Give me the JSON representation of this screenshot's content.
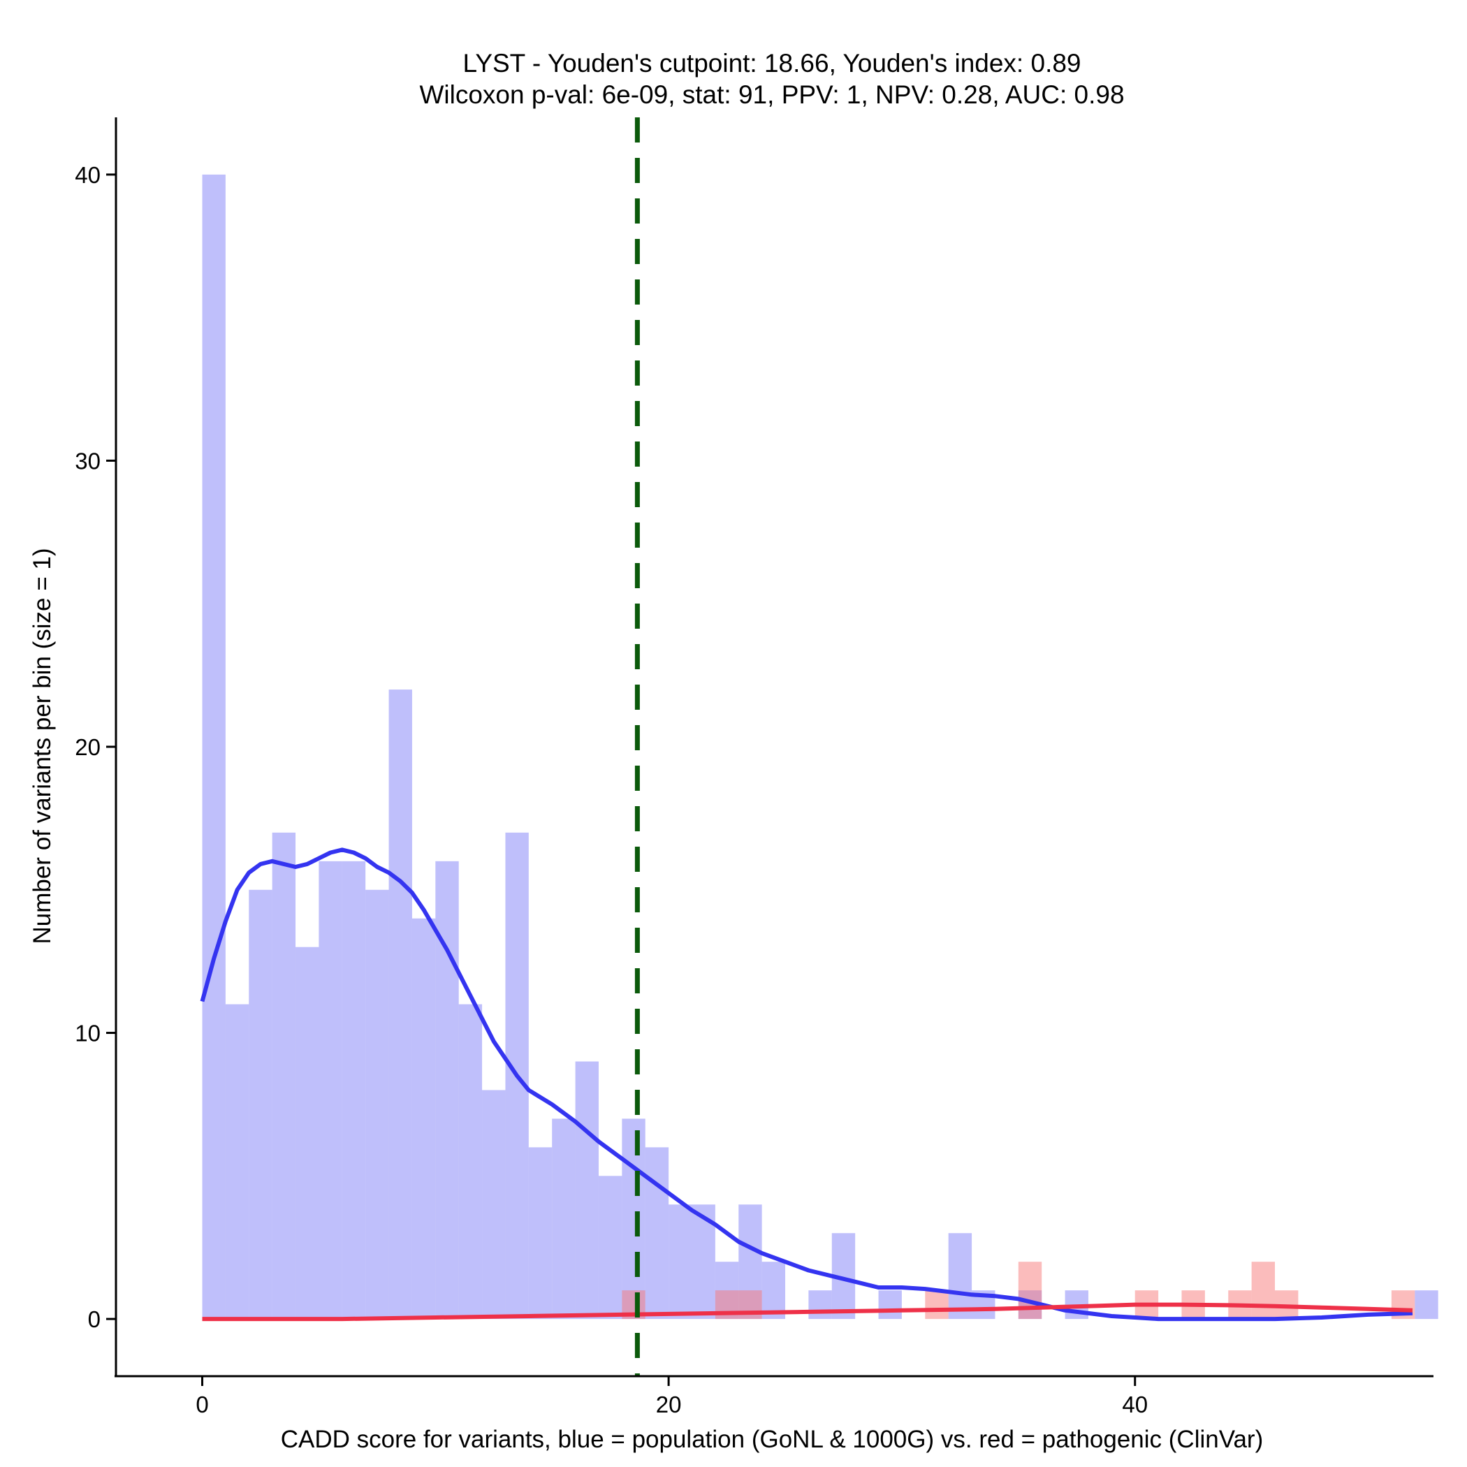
{
  "chart_data": {
    "type": "histogram",
    "title_line1": "LYST - Youden's cutpoint: 18.66, Youden's index: 0.89",
    "title_line2": "Wilcoxon p-val: 6e-09, stat: 91, PPV: 1, NPV: 0.28, AUC: 0.98",
    "xlabel": "CADD score for variants, blue = population (GoNL & 1000G) vs. red = pathogenic (ClinVar)",
    "ylabel": "Number of variants per bin (size = 1)",
    "xlim": [
      -3.7,
      52.8
    ],
    "ylim": [
      -2,
      42
    ],
    "bin_size": 1,
    "x_ticks": [
      0,
      20,
      40
    ],
    "x_tick_labels": [
      "0",
      "20",
      "40"
    ],
    "y_ticks": [
      0,
      10,
      20,
      30,
      40
    ],
    "y_tick_labels": [
      "0",
      "10",
      "20",
      "30",
      "40"
    ],
    "cutpoint": 18.66,
    "series": [
      {
        "name": "population (GoNL & 1000G)",
        "color": "#8080f7",
        "bins": [
          {
            "x": 0,
            "count": 40
          },
          {
            "x": 1,
            "count": 11
          },
          {
            "x": 2,
            "count": 15
          },
          {
            "x": 3,
            "count": 17
          },
          {
            "x": 4,
            "count": 13
          },
          {
            "x": 5,
            "count": 16
          },
          {
            "x": 6,
            "count": 16
          },
          {
            "x": 7,
            "count": 15
          },
          {
            "x": 8,
            "count": 22
          },
          {
            "x": 9,
            "count": 14
          },
          {
            "x": 10,
            "count": 16
          },
          {
            "x": 11,
            "count": 11
          },
          {
            "x": 12,
            "count": 8
          },
          {
            "x": 13,
            "count": 17
          },
          {
            "x": 14,
            "count": 6
          },
          {
            "x": 15,
            "count": 7
          },
          {
            "x": 16,
            "count": 9
          },
          {
            "x": 17,
            "count": 5
          },
          {
            "x": 18,
            "count": 7
          },
          {
            "x": 19,
            "count": 6
          },
          {
            "x": 20,
            "count": 4
          },
          {
            "x": 21,
            "count": 4
          },
          {
            "x": 22,
            "count": 2
          },
          {
            "x": 23,
            "count": 4
          },
          {
            "x": 24,
            "count": 2
          },
          {
            "x": 26,
            "count": 1
          },
          {
            "x": 27,
            "count": 3
          },
          {
            "x": 29,
            "count": 1
          },
          {
            "x": 32,
            "count": 3
          },
          {
            "x": 33,
            "count": 1
          },
          {
            "x": 35,
            "count": 1
          },
          {
            "x": 37,
            "count": 1
          },
          {
            "x": 52,
            "count": 1
          }
        ],
        "density_curve": [
          [
            0,
            11.1
          ],
          [
            0.5,
            12.6
          ],
          [
            1,
            13.9
          ],
          [
            1.5,
            15.0
          ],
          [
            2,
            15.6
          ],
          [
            2.5,
            15.9
          ],
          [
            3,
            16.0
          ],
          [
            3.5,
            15.9
          ],
          [
            4,
            15.8
          ],
          [
            4.5,
            15.9
          ],
          [
            5,
            16.1
          ],
          [
            5.5,
            16.3
          ],
          [
            6,
            16.4
          ],
          [
            6.5,
            16.3
          ],
          [
            7,
            16.1
          ],
          [
            7.5,
            15.8
          ],
          [
            8,
            15.6
          ],
          [
            8.5,
            15.3
          ],
          [
            9,
            14.9
          ],
          [
            9.5,
            14.3
          ],
          [
            10,
            13.6
          ],
          [
            10.5,
            12.9
          ],
          [
            11,
            12.1
          ],
          [
            11.5,
            11.3
          ],
          [
            12,
            10.5
          ],
          [
            12.5,
            9.7
          ],
          [
            13,
            9.1
          ],
          [
            13.5,
            8.5
          ],
          [
            14,
            8.0
          ],
          [
            15,
            7.5
          ],
          [
            16,
            6.9
          ],
          [
            17,
            6.2
          ],
          [
            18,
            5.6
          ],
          [
            19,
            5.0
          ],
          [
            20,
            4.4
          ],
          [
            21,
            3.8
          ],
          [
            22,
            3.3
          ],
          [
            23,
            2.7
          ],
          [
            24,
            2.3
          ],
          [
            25,
            2.0
          ],
          [
            26,
            1.7
          ],
          [
            27,
            1.5
          ],
          [
            28,
            1.3
          ],
          [
            29,
            1.1
          ],
          [
            30,
            1.1
          ],
          [
            31,
            1.05
          ],
          [
            32,
            0.95
          ],
          [
            33,
            0.85
          ],
          [
            34,
            0.8
          ],
          [
            35,
            0.7
          ],
          [
            36,
            0.5
          ],
          [
            37,
            0.3
          ],
          [
            38,
            0.2
          ],
          [
            39,
            0.1
          ],
          [
            40,
            0.05
          ],
          [
            41,
            0.0
          ],
          [
            42,
            0.0
          ],
          [
            44,
            0.0
          ],
          [
            46,
            0.0
          ],
          [
            48,
            0.05
          ],
          [
            50,
            0.15
          ],
          [
            51.9,
            0.2
          ]
        ]
      },
      {
        "name": "pathogenic (ClinVar)",
        "color": "#f77a7a",
        "bins": [
          {
            "x": 18,
            "count": 1
          },
          {
            "x": 22,
            "count": 1
          },
          {
            "x": 23,
            "count": 1
          },
          {
            "x": 31,
            "count": 1
          },
          {
            "x": 35,
            "count": 2
          },
          {
            "x": 40,
            "count": 1
          },
          {
            "x": 42,
            "count": 1
          },
          {
            "x": 44,
            "count": 1
          },
          {
            "x": 45,
            "count": 2
          },
          {
            "x": 46,
            "count": 1
          },
          {
            "x": 51,
            "count": 1
          }
        ],
        "density_curve": [
          [
            0,
            0.0
          ],
          [
            6,
            0.0
          ],
          [
            10,
            0.05
          ],
          [
            14,
            0.1
          ],
          [
            18,
            0.15
          ],
          [
            22,
            0.2
          ],
          [
            26,
            0.25
          ],
          [
            30,
            0.3
          ],
          [
            34,
            0.35
          ],
          [
            36,
            0.4
          ],
          [
            38,
            0.45
          ],
          [
            40,
            0.5
          ],
          [
            42,
            0.5
          ],
          [
            44,
            0.48
          ],
          [
            46,
            0.45
          ],
          [
            48,
            0.4
          ],
          [
            50,
            0.35
          ],
          [
            51.9,
            0.3
          ]
        ]
      }
    ]
  }
}
